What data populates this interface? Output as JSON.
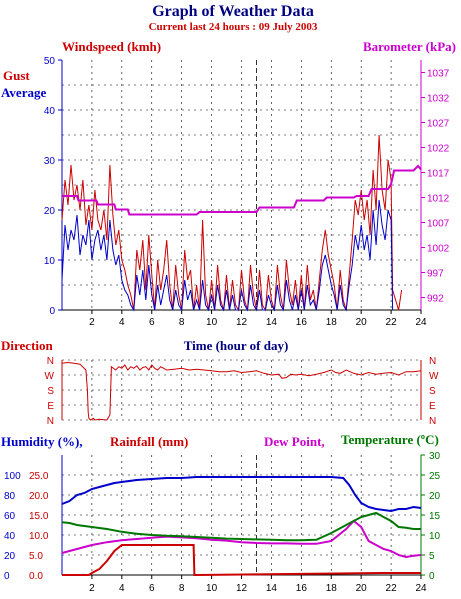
{
  "header": {
    "title": "Graph of Weather Data",
    "subtitle": "Current last 24 hours : 09 July 2003"
  },
  "colors": {
    "gust": "#cc0000",
    "average": "#0000cc",
    "barometer": "#cc00cc",
    "direction": "#cc0000",
    "humidity": "#0000cc",
    "rainfall": "#cc0000",
    "dewpoint": "#cc00cc",
    "temperature": "#007700"
  },
  "chart_data": [
    {
      "type": "line",
      "id": "wind",
      "labels": {
        "windspeed": "Windspeed (kmh)",
        "barometer": "Barometer (kPa)",
        "gust": "Gust",
        "average": "Average",
        "xlabel": "Time (hour of day)"
      },
      "x_ticks": [
        2,
        4,
        6,
        8,
        10,
        12,
        14,
        16,
        18,
        20,
        22,
        24
      ],
      "xlim": [
        0,
        24
      ],
      "y_left_ticks": [
        0,
        10,
        20,
        30,
        40,
        50
      ],
      "ylim_left": [
        0,
        50
      ],
      "y_right_ticks": [
        992,
        997,
        1002,
        1007,
        1012,
        1017,
        1022,
        1027,
        1032,
        1037
      ],
      "ylim_right": [
        989.5,
        1039.5
      ],
      "grid": true,
      "current_time_marker": 13,
      "series": [
        {
          "name": "Gust",
          "axis": "left",
          "x": [
            0,
            0.2,
            0.4,
            0.6,
            0.8,
            1.0,
            1.2,
            1.4,
            1.6,
            1.8,
            2.0,
            2.2,
            2.4,
            2.6,
            2.8,
            3.0,
            3.2,
            3.4,
            3.6,
            3.8,
            4.0,
            4.2,
            4.4,
            4.6,
            4.8,
            5.0,
            5.2,
            5.4,
            5.6,
            5.8,
            6.0,
            6.2,
            6.4,
            6.6,
            6.8,
            7.0,
            7.2,
            7.4,
            7.6,
            7.8,
            8.0,
            8.2,
            8.4,
            8.6,
            8.8,
            9.0,
            9.2,
            9.4,
            9.6,
            9.8,
            10.0,
            10.2,
            10.4,
            10.6,
            10.8,
            11.0,
            11.2,
            11.4,
            11.6,
            11.8,
            12.0,
            12.2,
            12.4,
            12.6,
            12.8,
            13.0,
            13.2,
            13.4,
            13.6,
            13.8,
            14.0,
            14.2,
            14.4,
            14.6,
            14.8,
            15.0,
            15.2,
            15.4,
            15.6,
            15.8,
            16.0,
            16.2,
            16.4,
            16.6,
            16.8,
            17.0,
            17.2,
            17.4,
            17.6,
            17.8,
            18.0,
            18.2,
            18.4,
            18.6,
            18.8,
            19.0,
            19.2,
            19.4,
            19.6,
            19.8,
            20.0,
            20.2,
            20.4,
            20.6,
            20.8,
            21.0,
            21.2,
            21.4,
            21.6,
            21.8,
            22.0,
            22.1,
            22.5,
            22.7
          ],
          "values": [
            18,
            26,
            21,
            29,
            22,
            25,
            20,
            26,
            17,
            21,
            16,
            24,
            18,
            16,
            20,
            14,
            29,
            19,
            13,
            16,
            10,
            8,
            5,
            3,
            0,
            12,
            8,
            14,
            4,
            15,
            7,
            0,
            10,
            4,
            8,
            14,
            5,
            0,
            9,
            3,
            0,
            12,
            6,
            8,
            0,
            5,
            0,
            18,
            3,
            0,
            6,
            0,
            9,
            2,
            0,
            7,
            0,
            6,
            1,
            0,
            8,
            2,
            0,
            9,
            3,
            0,
            8,
            1,
            0,
            7,
            2,
            0,
            9,
            3,
            0,
            10,
            4,
            1,
            6,
            0,
            7,
            0,
            9,
            2,
            4,
            0,
            6,
            12,
            16,
            11,
            8,
            5,
            0,
            8,
            2,
            0,
            7,
            14,
            22,
            19,
            24,
            18,
            22,
            15,
            28,
            20,
            35,
            24,
            20,
            30,
            26,
            4,
            0,
            4
          ]
        },
        {
          "name": "Average",
          "axis": "left",
          "x": [
            0,
            0.2,
            0.4,
            0.6,
            0.8,
            1.0,
            1.2,
            1.4,
            1.6,
            1.8,
            2.0,
            2.2,
            2.4,
            2.6,
            2.8,
            3.0,
            3.2,
            3.4,
            3.6,
            3.8,
            4.0,
            4.2,
            4.4,
            4.6,
            4.8,
            5.0,
            5.2,
            5.4,
            5.6,
            5.8,
            6.0,
            6.2,
            6.4,
            6.6,
            6.8,
            7.0,
            7.2,
            7.4,
            7.6,
            7.8,
            8.0,
            8.2,
            8.4,
            8.6,
            8.8,
            9.0,
            9.2,
            9.4,
            9.6,
            9.8,
            10.0,
            10.2,
            10.4,
            10.6,
            10.8,
            11.0,
            11.2,
            11.4,
            11.6,
            11.8,
            12.0,
            12.2,
            12.4,
            12.6,
            12.8,
            13.0,
            13.2,
            13.4,
            13.6,
            13.8,
            14.0,
            14.2,
            14.4,
            14.6,
            14.8,
            15.0,
            15.2,
            15.4,
            15.6,
            15.8,
            16.0,
            16.2,
            16.4,
            16.6,
            16.8,
            17.0,
            17.2,
            17.4,
            17.6,
            17.8,
            18.0,
            18.2,
            18.4,
            18.6,
            18.8,
            19.0,
            19.2,
            19.4,
            19.6,
            19.8,
            20.0,
            20.2,
            20.4,
            20.6,
            20.8,
            21.0,
            21.2,
            21.4,
            21.6,
            21.8,
            22.0,
            22.1
          ],
          "values": [
            6,
            17,
            12,
            16,
            14,
            19,
            11,
            15,
            13,
            18,
            10,
            14,
            16,
            12,
            15,
            10,
            18,
            12,
            9,
            11,
            6,
            4,
            3,
            1,
            0,
            7,
            3,
            8,
            2,
            9,
            3,
            0,
            5,
            1,
            4,
            7,
            2,
            0,
            4,
            1,
            0,
            6,
            2,
            4,
            0,
            2,
            0,
            6,
            1,
            0,
            3,
            0,
            5,
            1,
            0,
            4,
            0,
            3,
            0,
            0,
            4,
            1,
            0,
            5,
            1,
            0,
            4,
            0,
            0,
            3,
            1,
            0,
            5,
            1,
            0,
            6,
            2,
            0,
            3,
            0,
            4,
            0,
            5,
            1,
            2,
            0,
            4,
            9,
            11,
            8,
            5,
            3,
            0,
            5,
            1,
            0,
            5,
            9,
            15,
            12,
            17,
            12,
            15,
            10,
            20,
            13,
            22,
            17,
            14,
            20,
            18,
            0
          ]
        },
        {
          "name": "Barometer",
          "axis": "right",
          "x": [
            0,
            1.0,
            1.1,
            2.3,
            2.4,
            3.5,
            3.6,
            4.4,
            4.5,
            9.0,
            9.2,
            13.0,
            13.2,
            15.5,
            15.7,
            17.5,
            17.7,
            19.5,
            19.7,
            20.5,
            20.7,
            21.8,
            22.0,
            22.2,
            23.5,
            23.8,
            24.0
          ],
          "values": [
            1012.3,
            1012.3,
            1011.4,
            1011.4,
            1010.6,
            1010.6,
            1009.6,
            1009.6,
            1008.6,
            1008.6,
            1009.1,
            1009.1,
            1010.0,
            1010.0,
            1011.4,
            1011.4,
            1012.0,
            1012.0,
            1012.3,
            1012.3,
            1013.7,
            1013.7,
            1014.7,
            1017.4,
            1017.4,
            1018.3,
            1017.6
          ]
        }
      ]
    },
    {
      "type": "line",
      "id": "direction",
      "labels": {
        "title": "Direction"
      },
      "y_categories": [
        "N",
        "W",
        "S",
        "E",
        "N"
      ],
      "x_ticks": [
        2,
        4,
        6,
        8,
        10,
        12,
        14,
        16,
        18,
        20,
        22,
        24
      ],
      "xlim": [
        0,
        24
      ],
      "grid": true,
      "series": [
        {
          "name": "Direction",
          "x": [
            0,
            0.4,
            0.8,
            1.2,
            1.6,
            1.7,
            1.75,
            1.8,
            1.9,
            2.0,
            2.1,
            2.2,
            2.5,
            3.0,
            3.2,
            3.3,
            3.6,
            3.8,
            4.0,
            4.2,
            4.4,
            4.6,
            4.8,
            5.0,
            5.2,
            5.4,
            5.6,
            5.8,
            6.0,
            6.2,
            6.4,
            6.6,
            6.8,
            7.0,
            7.5,
            8.0,
            8.5,
            9.0,
            9.5,
            10.0,
            10.5,
            11.0,
            11.5,
            12.0,
            12.5,
            13.0,
            13.5,
            14.0,
            14.5,
            14.7,
            15.0,
            15.3,
            15.6,
            16.0,
            16.5,
            17.0,
            17.5,
            18.0,
            18.3,
            18.6,
            19.0,
            19.5,
            20.0,
            20.5,
            21.0,
            21.5,
            22.0,
            22.5,
            23.0,
            23.5,
            24.0
          ],
          "values": [
            340,
            345,
            340,
            335,
            300,
            180,
            45,
            10,
            0,
            5,
            10,
            0,
            5,
            0,
            30,
            320,
            300,
            320,
            310,
            330,
            300,
            320,
            310,
            325,
            300,
            315,
            320,
            300,
            330,
            310,
            300,
            320,
            310,
            300,
            305,
            310,
            300,
            305,
            300,
            295,
            290,
            290,
            295,
            285,
            290,
            295,
            280,
            270,
            275,
            250,
            255,
            275,
            270,
            275,
            265,
            275,
            285,
            300,
            285,
            280,
            300,
            280,
            270,
            285,
            275,
            280,
            285,
            270,
            290,
            290,
            295
          ]
        }
      ]
    },
    {
      "type": "line",
      "id": "humidity",
      "labels": {
        "humidity": "Humidity (%),",
        "rainfall": "Rainfall (mm)",
        "dewpoint": "Dew Point,",
        "temperature": "Temperature (ºC)"
      },
      "humidity_ticks": [
        0,
        20,
        40,
        60,
        80,
        100
      ],
      "rain_ticks": [
        "0.0",
        "5.0",
        "10.0",
        "15.0",
        "20.0",
        "25.0"
      ],
      "temp_ticks": [
        0,
        5,
        10,
        15,
        20,
        25,
        30
      ],
      "x_ticks": [
        2,
        4,
        6,
        8,
        10,
        12,
        14,
        16,
        18,
        20,
        22,
        24
      ],
      "xlim": [
        0,
        24
      ],
      "ylim_left": [
        0,
        30
      ],
      "ylim_right": [
        0,
        30
      ],
      "grid": true,
      "current_time_marker": 13,
      "series": [
        {
          "name": "Humidity",
          "axis": "humidity",
          "x": [
            0,
            0.5,
            1,
            1.5,
            2,
            2.5,
            3,
            3.5,
            4,
            5,
            6,
            7,
            8,
            9,
            10,
            11,
            12,
            13,
            14,
            15,
            16,
            17,
            18,
            18.8,
            19.2,
            19.6,
            20,
            20.5,
            21,
            21.5,
            22,
            22.5,
            23,
            23.5,
            24
          ],
          "values": [
            71,
            74,
            80,
            82,
            86,
            88,
            90,
            92,
            93,
            95,
            96,
            97,
            97,
            98,
            98,
            98,
            98,
            98,
            98,
            98,
            98,
            98,
            98,
            97,
            90,
            80,
            72,
            68,
            66,
            65,
            64,
            66,
            66,
            68,
            67
          ]
        },
        {
          "name": "Rainfall",
          "axis": "rain",
          "x": [
            0,
            1.8,
            2.0,
            2.5,
            3.0,
            3.5,
            4.0,
            8.8,
            8.85,
            9.0,
            21.5,
            24.0
          ],
          "values": [
            0,
            0,
            0.5,
            1.5,
            3.5,
            6.0,
            7.5,
            7.5,
            0.0,
            0.0,
            0.5,
            0.5
          ]
        },
        {
          "name": "Dew Point",
          "axis": "temp",
          "x": [
            0,
            0.5,
            1,
            2,
            3,
            4,
            5,
            6,
            7,
            8,
            9,
            10,
            11,
            12,
            13,
            14,
            15,
            16,
            17,
            18,
            18.5,
            19,
            19.5,
            20,
            20.5,
            21,
            21.5,
            22,
            22.5,
            23,
            23.5,
            24
          ],
          "values": [
            5.5,
            6.0,
            6.5,
            7.5,
            8.2,
            8.7,
            9.0,
            9.3,
            9.6,
            9.4,
            9.2,
            8.8,
            8.6,
            8.2,
            8.0,
            7.9,
            7.9,
            7.8,
            7.8,
            8.5,
            10.0,
            11.5,
            13.5,
            12.0,
            8.5,
            7.5,
            6.5,
            6.0,
            5.0,
            4.5,
            4.8,
            5.0
          ]
        },
        {
          "name": "Temperature",
          "axis": "temp",
          "x": [
            0,
            0.5,
            1,
            2,
            3,
            4,
            5,
            6,
            7,
            8,
            9,
            10,
            11,
            12,
            13,
            14,
            15,
            16,
            17,
            18,
            19,
            19.5,
            20,
            20.5,
            21,
            21.5,
            22,
            22.5,
            23,
            23.5,
            24
          ],
          "values": [
            13.2,
            13.0,
            12.5,
            12.0,
            11.5,
            10.8,
            10.3,
            10.0,
            9.8,
            9.7,
            9.5,
            9.3,
            9.1,
            9.0,
            8.9,
            8.8,
            8.7,
            8.7,
            8.8,
            10.5,
            12.5,
            13.5,
            14.5,
            15.0,
            15.5,
            14.5,
            13.5,
            12.0,
            11.8,
            11.5,
            11.5
          ]
        }
      ]
    }
  ]
}
